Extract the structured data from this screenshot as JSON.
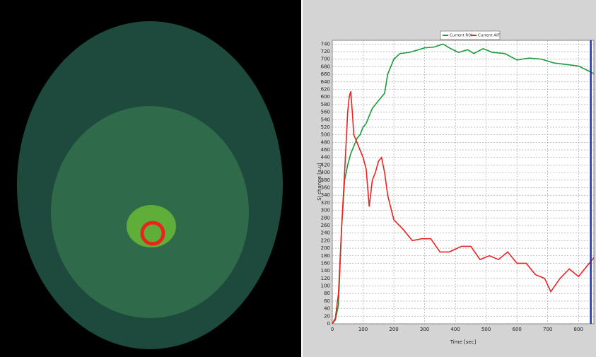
{
  "chart_data": {
    "type": "line",
    "xlabel": "Time [sec]",
    "ylabel": "SI change [a.u]",
    "xlim": [
      0,
      850
    ],
    "ylim": [
      0,
      750
    ],
    "xticks": [
      0,
      100,
      200,
      300,
      400,
      500,
      600,
      700,
      800
    ],
    "yticks": [
      0,
      20,
      40,
      60,
      80,
      100,
      120,
      140,
      160,
      180,
      200,
      220,
      240,
      260,
      280,
      300,
      320,
      340,
      360,
      380,
      400,
      420,
      440,
      460,
      480,
      500,
      520,
      540,
      560,
      580,
      600,
      620,
      640,
      660,
      680,
      700,
      720,
      740
    ],
    "grid": true,
    "legend": "top",
    "cursor_x": 840,
    "cursor_color": "#2233aa",
    "series": [
      {
        "name": "Current ROI",
        "color": "#1a9a3a",
        "x": [
          0,
          10,
          20,
          30,
          40,
          50,
          60,
          70,
          80,
          90,
          100,
          110,
          120,
          130,
          140,
          150,
          160,
          170,
          180,
          200,
          220,
          250,
          280,
          300,
          330,
          360,
          380,
          410,
          440,
          460,
          490,
          520,
          560,
          600,
          640,
          680,
          720,
          760,
          800,
          830,
          850
        ],
        "values": [
          0,
          10,
          50,
          250,
          380,
          420,
          450,
          470,
          490,
          500,
          520,
          530,
          550,
          570,
          580,
          590,
          600,
          610,
          660,
          700,
          715,
          718,
          725,
          730,
          732,
          740,
          730,
          718,
          725,
          715,
          728,
          718,
          715,
          698,
          703,
          700,
          690,
          686,
          682,
          670,
          662
        ]
      },
      {
        "name": "Current AIF",
        "color": "#ee2222",
        "x": [
          0,
          10,
          20,
          30,
          40,
          50,
          55,
          60,
          65,
          70,
          80,
          90,
          100,
          110,
          120,
          130,
          140,
          150,
          160,
          170,
          180,
          200,
          230,
          260,
          290,
          320,
          350,
          380,
          420,
          450,
          480,
          510,
          540,
          570,
          600,
          630,
          660,
          690,
          710,
          740,
          770,
          800,
          850
        ],
        "values": [
          0,
          15,
          80,
          250,
          400,
          560,
          600,
          615,
          560,
          500,
          480,
          460,
          440,
          410,
          310,
          380,
          400,
          430,
          440,
          400,
          340,
          275,
          250,
          220,
          225,
          225,
          190,
          190,
          205,
          205,
          170,
          180,
          170,
          190,
          160,
          160,
          130,
          120,
          85,
          120,
          145,
          125,
          175
        ]
      }
    ]
  }
}
